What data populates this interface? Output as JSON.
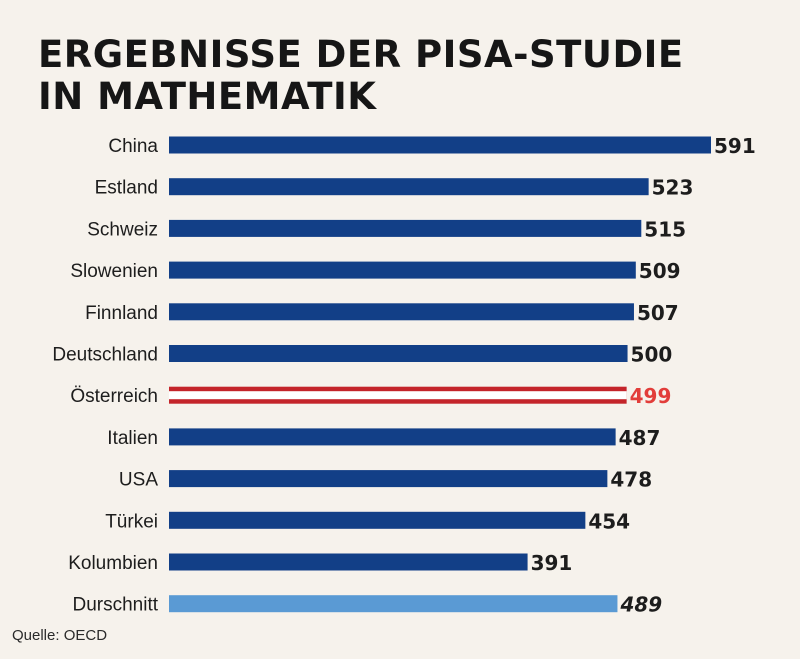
{
  "title": {
    "line1": "ERGEBNISSE DER PISA-STUDIE",
    "line2": "IN MATHEMATIK"
  },
  "source": "Quelle: OECD",
  "colors": {
    "bar": "#123f87",
    "highlight_outer": "#c4242a",
    "highlight_inner": "#ffffff",
    "highlight_label": "#e23d3a",
    "average": "#5a9ad4"
  },
  "chart_data": {
    "type": "bar",
    "orientation": "horizontal",
    "categories": [
      "China",
      "Estland",
      "Schweiz",
      "Slowenien",
      "Finnland",
      "Deutschland",
      "Österreich",
      "Italien",
      "USA",
      "Türkei",
      "Kolumbien",
      "Durschnitt"
    ],
    "values": [
      591,
      523,
      515,
      509,
      507,
      500,
      499,
      487,
      478,
      454,
      391,
      489
    ],
    "value_labels": [
      "591",
      "523",
      "515",
      "509",
      "507",
      "500",
      "499",
      "487",
      "478",
      "454",
      "391",
      "489"
    ],
    "highlight": "Österreich",
    "average_category": "Durschnitt",
    "xlim": [
      0,
      591
    ],
    "grid": false,
    "legend": "none"
  }
}
